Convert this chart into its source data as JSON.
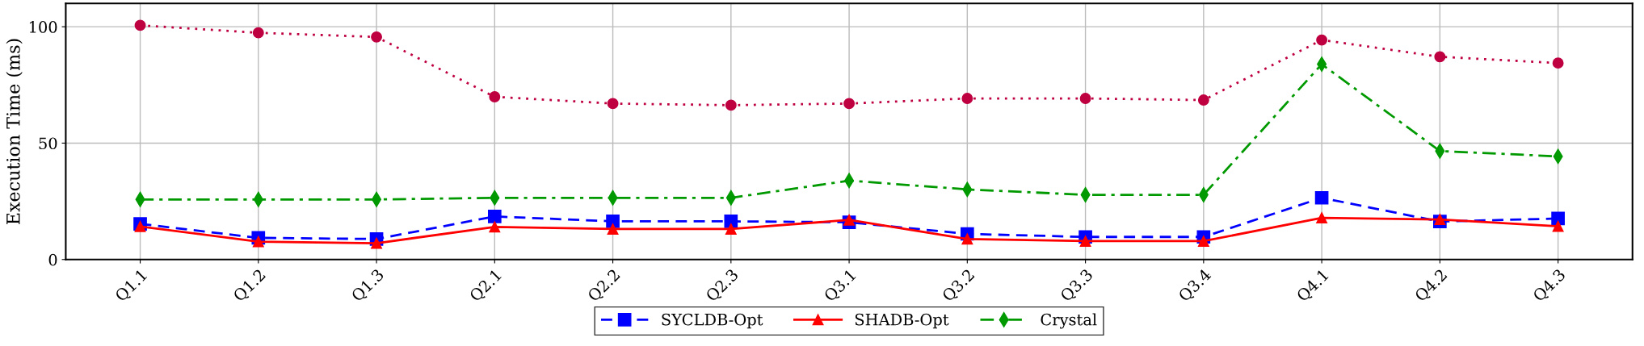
{
  "chart_data": {
    "type": "line",
    "ylabel": "Execution Time (ms)",
    "categories": [
      "Q1.1",
      "Q1.2",
      "Q1.3",
      "Q2.1",
      "Q2.2",
      "Q2.3",
      "Q3.1",
      "Q3.2",
      "Q3.3",
      "Q3.4",
      "Q4.1",
      "Q4.2",
      "Q4.3"
    ],
    "series": [
      {
        "name": "SYCLDB-Opt",
        "color": "#0000ff",
        "marker": "square",
        "line_style": "dashed",
        "values": [
          15.3,
          9.3,
          8.8,
          18.5,
          16.4,
          16.4,
          16,
          11,
          9.7,
          9.7,
          26.5,
          16.3,
          17.6
        ]
      },
      {
        "name": "SHADB-Opt",
        "color": "#ff0000",
        "marker": "triangle",
        "line_style": "solid",
        "values": [
          14.2,
          7.7,
          7,
          14,
          13.1,
          13.1,
          17,
          8.8,
          7.9,
          7.9,
          17.9,
          17.2,
          14.3
        ]
      },
      {
        "name": "Crystal",
        "color": "#009900",
        "marker": "diamond",
        "line_style": "dashdot",
        "values": [
          25.8,
          25.8,
          25.8,
          26.5,
          26.5,
          26.5,
          33.9,
          30.1,
          27.8,
          27.8,
          83.9,
          46.6,
          44.3
        ]
      },
      {
        "color": "#bf0040",
        "marker": "circle",
        "line_style": "dotted",
        "values": [
          100.6,
          97.4,
          95.6,
          69.9,
          67,
          66.3,
          67,
          69.2,
          69.2,
          68.5,
          94.3,
          87.1,
          84.4
        ]
      }
    ],
    "ylim": [
      0,
      110
    ],
    "yticks": [
      0,
      50,
      100
    ],
    "grid": true,
    "legend": "bottom"
  }
}
